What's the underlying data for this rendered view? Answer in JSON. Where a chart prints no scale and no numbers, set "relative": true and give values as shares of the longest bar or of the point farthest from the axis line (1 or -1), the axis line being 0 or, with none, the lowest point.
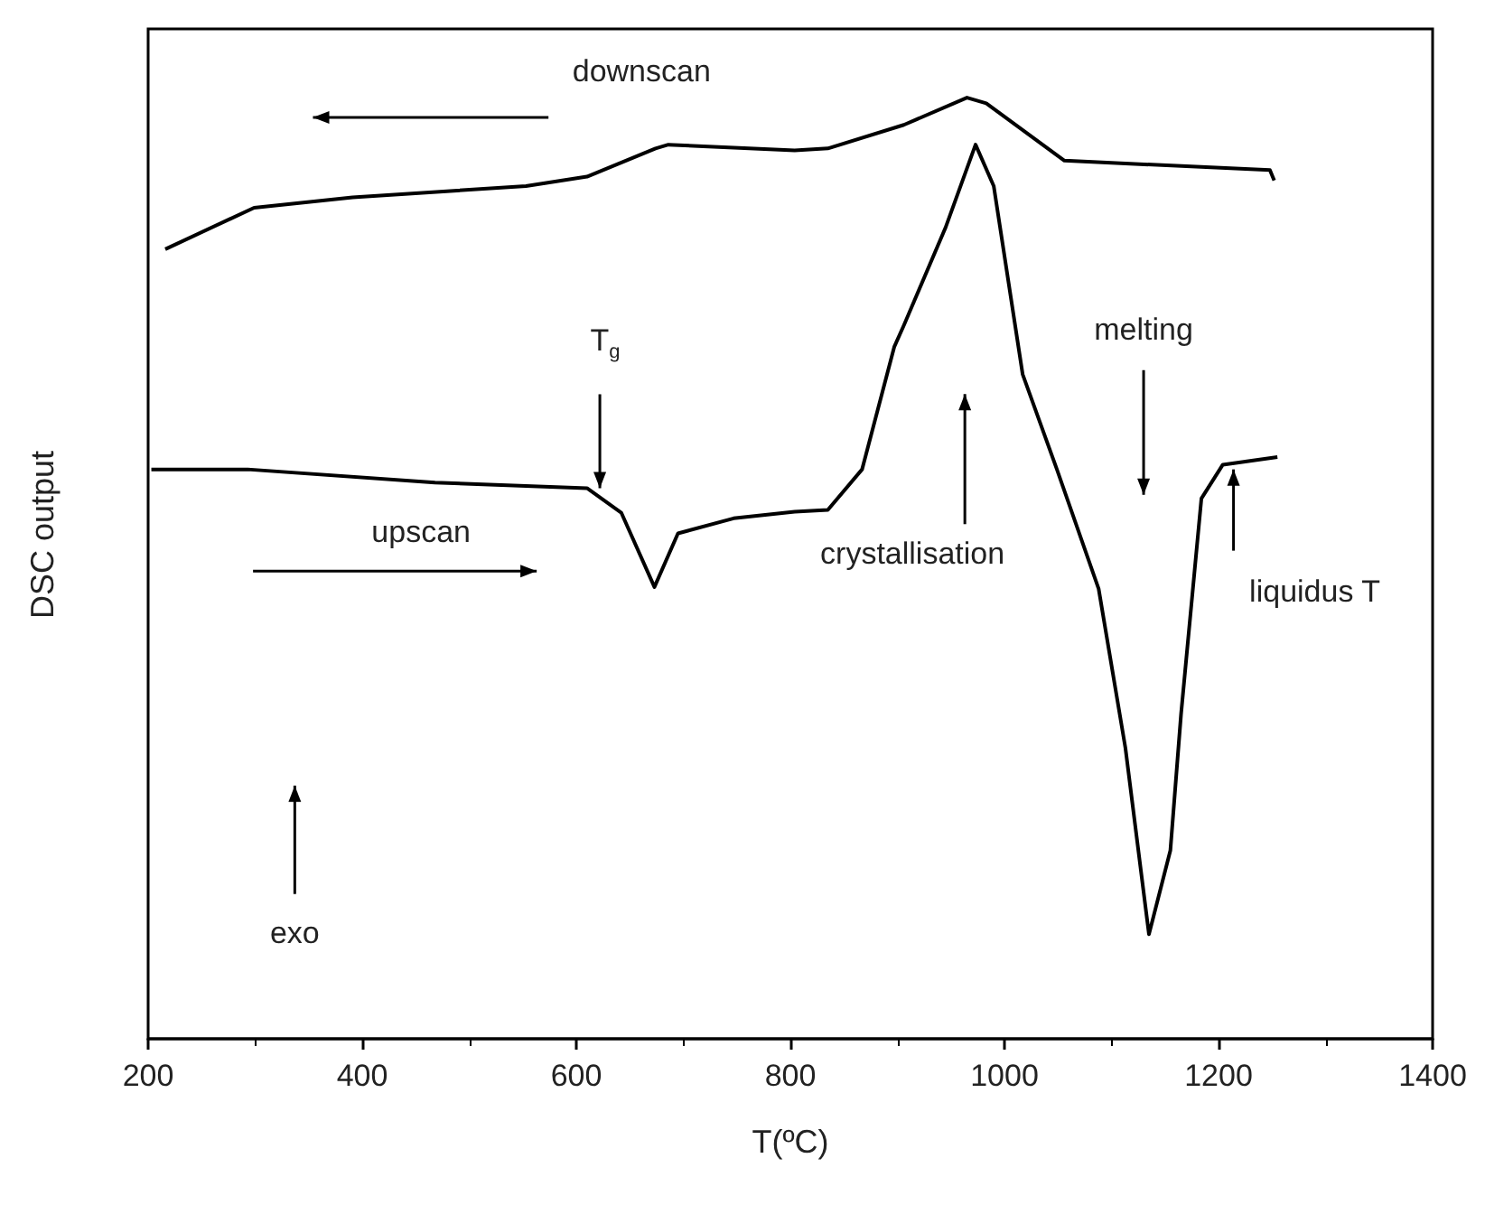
{
  "chart_data": {
    "type": "line",
    "relative": true,
    "xlabel": "T(ºC)",
    "ylabel": "DSC output",
    "xlim": [
      200,
      1400
    ],
    "xticks": [
      200,
      400,
      600,
      800,
      1000,
      1200,
      1400
    ],
    "grid": false,
    "legend": false,
    "series": [
      {
        "name": "downscan",
        "color": "#000000",
        "x": [
          216,
          299,
          391,
          553,
          610,
          674,
          686,
          804,
          835,
          906,
          965,
          983,
          1056,
          1248,
          1252
        ],
        "values": [
          0.839,
          0.883,
          0.894,
          0.906,
          0.916,
          0.946,
          0.95,
          0.944,
          0.946,
          0.971,
          1,
          0.994,
          0.933,
          0.923,
          0.912
        ]
      },
      {
        "name": "upscan",
        "color": "#000000",
        "x": [
          203,
          293,
          468,
          610,
          642,
          673,
          695,
          747,
          804,
          835,
          867,
          897,
          906,
          945,
          973,
          990,
          1017,
          1049,
          1088,
          1113,
          1135,
          1155,
          1165,
          1184,
          1204,
          1255
        ],
        "values": [
          0.605,
          0.605,
          0.591,
          0.585,
          0.559,
          0.48,
          0.537,
          0.553,
          0.56,
          0.562,
          0.605,
          0.735,
          0.758,
          0.862,
          0.95,
          0.906,
          0.706,
          0.605,
          0.478,
          0.309,
          0.111,
          0.2,
          0.345,
          0.574,
          0.61,
          0.618
        ]
      }
    ],
    "annotations": [
      {
        "text": "T$_{g}$",
        "x": 622,
        "y": 0.585
      },
      "crystallisation",
      "melting",
      {
        "text": "liquidus T",
        "x": 1214,
        "y": 0.605
      },
      "exo"
    ]
  }
}
